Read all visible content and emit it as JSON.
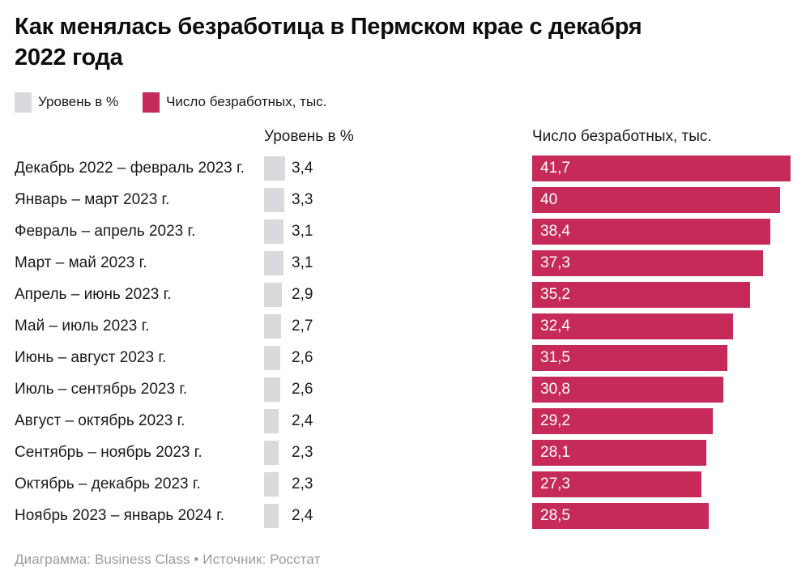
{
  "title": {
    "line1": "Как менялась безработица в Пермском крае с декабря",
    "line2": "2022 года",
    "full": "Как менялась безработица в Пермском крае с декабря 2022 года"
  },
  "legend": {
    "level": {
      "label": "Уровень в %"
    },
    "count": {
      "label": "Число безработных, тыс."
    }
  },
  "columns": {
    "level_header": "Уровень в %",
    "count_header": "Число безработных, тыс."
  },
  "footer": {
    "text": "Диаграмма: Business Class • Источник: Росстат"
  },
  "colors": {
    "count_bar": "#c62a58",
    "level_square": "#d9d9de",
    "text": "#1a1a1a",
    "bar_label": "#ffffff",
    "muted": "#9b9b9b"
  },
  "chart_data": {
    "type": "bar",
    "orientation": "horizontal",
    "title": "Как менялась безработица в Пермском крае с декабря 2022 года",
    "source": "Диаграмма: Business Class • Источник: Росстат",
    "legend_position": "top",
    "grid": false,
    "xmax": 41.7,
    "categories": [
      "Декабрь 2022 – февраль 2023 г.",
      "Январь – март 2023 г.",
      "Февраль – апрель 2023 г.",
      "Март – май 2023 г.",
      "Апрель – июнь 2023 г.",
      "Май – июль 2023 г.",
      "Июнь – август 2023 г.",
      "Июль – сентябрь 2023 г.",
      "Август – октябрь 2023 г.",
      "Сентябрь – ноябрь 2023 г.",
      "Октябрь – декабрь 2023 г.",
      "Ноябрь 2023 – январь 2024 г."
    ],
    "series": [
      {
        "name": "Уровень в %",
        "values": [
          3.4,
          3.3,
          3.1,
          3.1,
          2.9,
          2.7,
          2.6,
          2.6,
          2.4,
          2.3,
          2.3,
          2.4
        ],
        "labels": [
          "3,4",
          "3,3",
          "3,1",
          "3,1",
          "2,9",
          "2,7",
          "2,6",
          "2,6",
          "2,4",
          "2,3",
          "2,3",
          "2,4"
        ]
      },
      {
        "name": "Число безработных, тыс.",
        "values": [
          41.7,
          40,
          38.4,
          37.3,
          35.2,
          32.4,
          31.5,
          30.8,
          29.2,
          28.1,
          27.3,
          28.5
        ],
        "labels": [
          "41,7",
          "40",
          "38,4",
          "37,3",
          "35,2",
          "32,4",
          "31,5",
          "30,8",
          "29,2",
          "28,1",
          "27,3",
          "28,5"
        ]
      }
    ]
  }
}
